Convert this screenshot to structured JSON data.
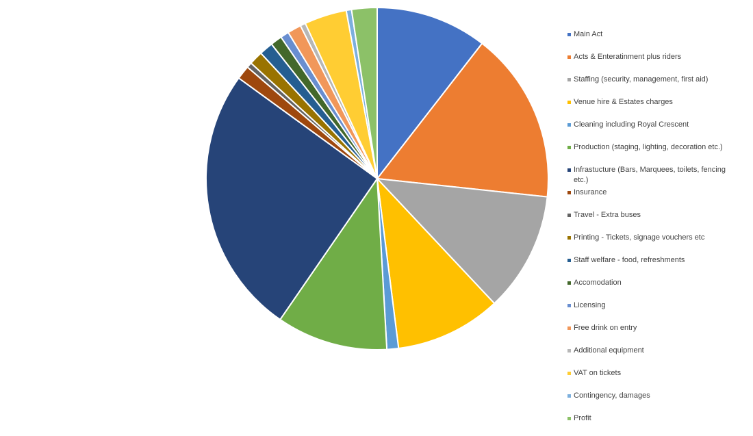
{
  "chart_data": {
    "type": "pie",
    "categories": [
      "Main Act",
      "Acts & Enteratinment plus riders",
      "Staffing (security, management, first aid)",
      "Venue hire & Estates charges",
      "Cleaning including Royal Crescent",
      "Production (staging, lighting, decoration etc.)",
      "Infrastucture (Bars, Marquees, toilets, fencing etc.)",
      "Insurance",
      "Travel - Extra buses",
      "Printing - Tickets, signage vouchers etc",
      "Staff welfare - food, refreshments",
      "Accomodation",
      "Licensing",
      "Free drink on entry",
      "Additional equipment",
      "VAT on tickets",
      "Contingency, damages",
      "Profit"
    ],
    "values": [
      10.5,
      16.2,
      11.3,
      10,
      1.1,
      10.5,
      25.4,
      1.3,
      0.5,
      1.3,
      1.3,
      1.1,
      0.8,
      1.3,
      0.5,
      4,
      0.5,
      2.4
    ],
    "colors": [
      "#4472c4",
      "#ed7d31",
      "#a5a5a5",
      "#ffc000",
      "#5b9bd5",
      "#70ad47",
      "#264478",
      "#9e480e",
      "#636363",
      "#997300",
      "#255e91",
      "#43682b",
      "#698ed0",
      "#f1975a",
      "#b7b7b7",
      "#ffcd33",
      "#7cafdd",
      "#8cc168"
    ],
    "legend": "right"
  }
}
